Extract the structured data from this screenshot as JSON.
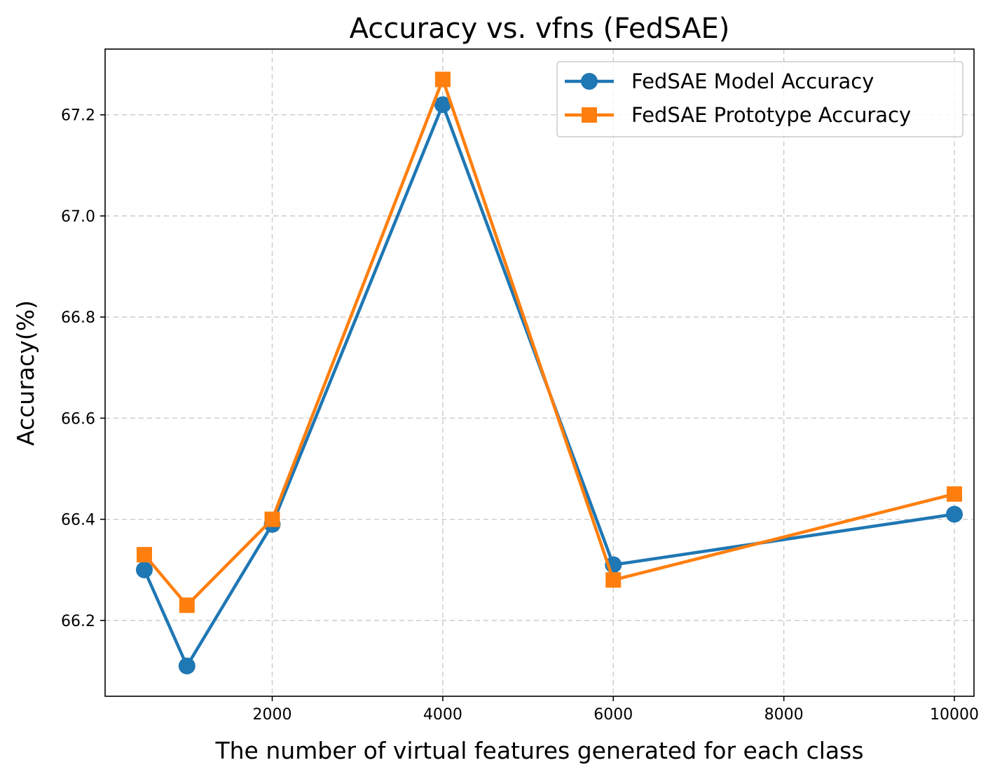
{
  "chart_data": {
    "type": "line",
    "title": "Accuracy vs. vfns (FedSAE)",
    "xlabel": "The number of virtual features generated for each class",
    "ylabel": "Accuracy(%)",
    "xlim": [
      40,
      10230
    ],
    "ylim": [
      66.05,
      67.33
    ],
    "x_ticks": [
      2000,
      4000,
      6000,
      8000,
      10000
    ],
    "y_ticks": [
      66.2,
      66.4,
      66.6,
      66.8,
      67.0,
      67.2
    ],
    "x_tick_labels": [
      "2000",
      "4000",
      "6000",
      "8000",
      "10000"
    ],
    "y_tick_labels": [
      "66.2",
      "66.4",
      "66.6",
      "66.8",
      "67.0",
      "67.2"
    ],
    "grid": true,
    "legend_position": "top-right",
    "x": [
      500,
      1000,
      2000,
      4000,
      6000,
      10000
    ],
    "series": [
      {
        "name": "FedSAE Model Accuracy",
        "values": [
          66.3,
          66.11,
          66.39,
          67.22,
          66.31,
          66.41
        ],
        "color": "#1f77b4",
        "marker": "circle"
      },
      {
        "name": "FedSAE Prototype Accuracy",
        "values": [
          66.33,
          66.23,
          66.4,
          67.27,
          66.28,
          66.45
        ],
        "color": "#ff7f0e",
        "marker": "square"
      }
    ]
  }
}
